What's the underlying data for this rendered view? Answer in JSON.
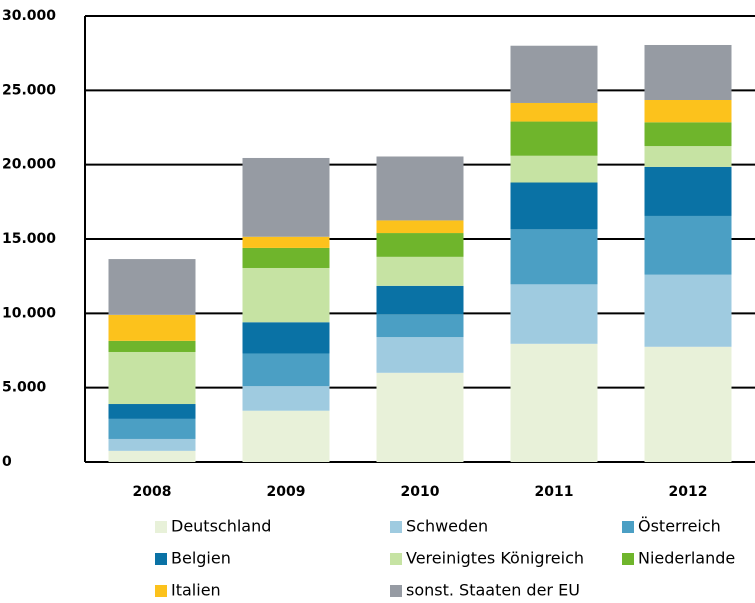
{
  "chart_data": {
    "type": "stacked_bar",
    "categories": [
      "2008",
      "2009",
      "2010",
      "2011",
      "2012"
    ],
    "series": [
      {
        "name": "Deutschland",
        "color": "#e8f1d9",
        "values": [
          750,
          3450,
          6000,
          7950,
          7750
        ]
      },
      {
        "name": "Schweden",
        "color": "#9fcbe0",
        "values": [
          800,
          1650,
          2400,
          4000,
          4850
        ]
      },
      {
        "name": "Österreich",
        "color": "#4b9fc4",
        "values": [
          1350,
          2200,
          1550,
          3700,
          3950
        ]
      },
      {
        "name": "Belgien",
        "color": "#0a72a5",
        "values": [
          1000,
          2100,
          1900,
          3150,
          3300
        ]
      },
      {
        "name": "Vereinigtes Königreich",
        "color": "#c6e3a3",
        "values": [
          3500,
          3650,
          1950,
          1800,
          1400
        ]
      },
      {
        "name": "Niederlande",
        "color": "#6fb52c",
        "values": [
          750,
          1350,
          1600,
          2300,
          1600
        ]
      },
      {
        "name": "Italien",
        "color": "#fcc21c",
        "values": [
          1750,
          750,
          850,
          1250,
          1500
        ]
      },
      {
        "name": "sonst. Staaten der EU",
        "color": "#969ba3",
        "values": [
          3750,
          5300,
          4300,
          3850,
          3700
        ]
      }
    ],
    "ylim": [
      0,
      30000
    ],
    "yticks": [
      {
        "value": 0,
        "label": "0"
      },
      {
        "value": 5000,
        "label": "5.000"
      },
      {
        "value": 10000,
        "label": "10.000"
      },
      {
        "value": 15000,
        "label": "15.000"
      },
      {
        "value": 20000,
        "label": "20.000"
      },
      {
        "value": 25000,
        "label": "25.000"
      },
      {
        "value": 30000,
        "label": "30.000"
      }
    ],
    "grid": true
  }
}
